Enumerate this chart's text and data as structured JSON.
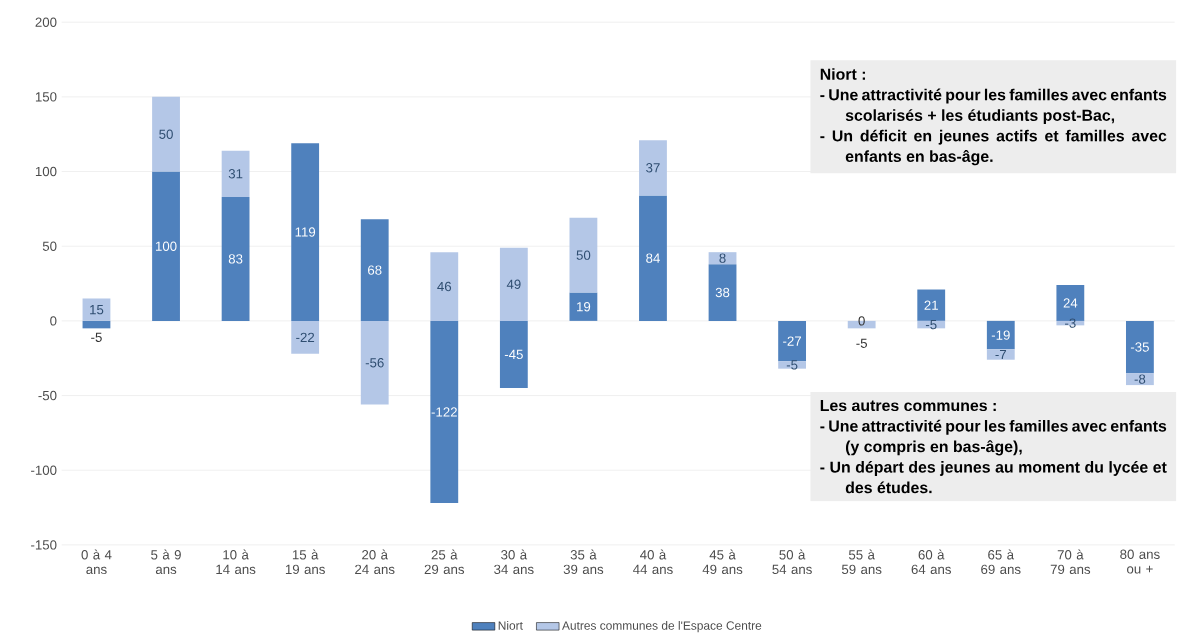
{
  "chart_data": {
    "type": "bar",
    "stacked": true,
    "data_labels": true,
    "legend": "bottom",
    "grid": "y",
    "categories": [
      "0 à 4 ans",
      "5 à 9 ans",
      "10 à 14 ans",
      "15 à 19 ans",
      "20 à 24 ans",
      "25 à 29 ans",
      "30 à 34 ans",
      "35 à 39 ans",
      "40 à 44 ans",
      "45 à 49 ans",
      "50 à 54 ans",
      "55 à 59 ans",
      "60 à 64 ans",
      "65 à 69 ans",
      "70 à 79 ans",
      "80 ans ou +"
    ],
    "series": [
      {
        "name": "Niort",
        "color": "#4f81bd",
        "values": [
          -5,
          100,
          83,
          119,
          68,
          -122,
          -45,
          19,
          84,
          38,
          -27,
          0,
          21,
          -19,
          24,
          -35
        ]
      },
      {
        "name": "Autres communes de l'Espace Centre",
        "color": "#b4c7e7",
        "values": [
          15,
          50,
          31,
          -22,
          -56,
          46,
          49,
          50,
          37,
          8,
          -5,
          -5,
          -5,
          -7,
          -3,
          -8
        ]
      }
    ],
    "ylim": [
      -150,
      200
    ],
    "yticks": [
      -150,
      -100,
      -50,
      0,
      50,
      100,
      150,
      200
    ],
    "annotations": [
      "Niort :",
      "- Une attractivité pour les familles avec enfants scolarisés + les étudiants post-Bac,",
      "- Un déficit en jeunes actifs et familles avec enfants en bas-âge.",
      "Les autres communes :",
      "- Une attractivité pour les familles avec enfants (y compris en bas-âge),",
      "- Un départ des jeunes au moment du lycée et des études."
    ]
  }
}
